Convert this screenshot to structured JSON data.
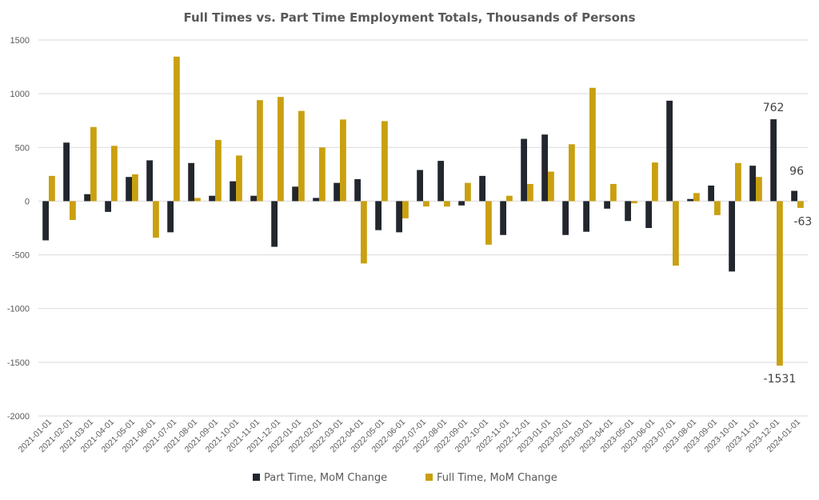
{
  "chart_data": {
    "type": "bar",
    "title": "Full Times vs. Part Time Employment Totals, Thousands of Persons",
    "xlabel": "",
    "ylabel": "",
    "ylim": [
      -2000,
      1500
    ],
    "yticks": [
      1500,
      1000,
      500,
      0,
      -500,
      -1000,
      -1500,
      -2000
    ],
    "grid": true,
    "legend_position": "bottom",
    "categories": [
      "2021-01-01",
      "2021-02-01",
      "2021-03-01",
      "2021-04-01",
      "2021-05-01",
      "2021-06-01",
      "2021-07-01",
      "2021-08-01",
      "2021-09-01",
      "2021-10-01",
      "2021-11-01",
      "2021-12-01",
      "2022-01-01",
      "2022-02-01",
      "2022-03-01",
      "2022-04-01",
      "2022-05-01",
      "2022-06-01",
      "2022-07-01",
      "2022-08-01",
      "2022-09-01",
      "2022-10-01",
      "2022-11-01",
      "2022-12-01",
      "2023-01-01",
      "2023-02-01",
      "2023-03-01",
      "2023-04-01",
      "2023-05-01",
      "2023-06-01",
      "2023-07-01",
      "2023-08-01",
      "2023-09-01",
      "2023-10-01",
      "2023-11-01",
      "2023-12-01",
      "2024-01-01"
    ],
    "series": [
      {
        "name": "Part Time, MoM Change",
        "color": "#22262d",
        "values": [
          -365,
          545,
          65,
          -100,
          225,
          380,
          -290,
          355,
          50,
          185,
          50,
          -425,
          135,
          30,
          170,
          205,
          -270,
          -290,
          290,
          375,
          -40,
          235,
          -315,
          580,
          620,
          -315,
          -285,
          -70,
          -185,
          -250,
          935,
          20,
          145,
          -655,
          330,
          762,
          96
        ]
      },
      {
        "name": "Full Time, MoM Change",
        "color": "#c9a010",
        "values": [
          235,
          -175,
          690,
          515,
          250,
          -340,
          1345,
          30,
          570,
          425,
          940,
          970,
          840,
          500,
          760,
          -580,
          745,
          -160,
          -50,
          -50,
          170,
          -405,
          50,
          160,
          275,
          530,
          1055,
          160,
          -20,
          360,
          -600,
          75,
          -130,
          355,
          225,
          -1531,
          -63
        ]
      }
    ],
    "data_labels": [
      {
        "series": "Part Time, MoM Change",
        "category": "2023-12-01",
        "text": "762"
      },
      {
        "series": "Part Time, MoM Change",
        "category": "2024-01-01",
        "text": "96"
      },
      {
        "series": "Full Time, MoM Change",
        "category": "2023-12-01",
        "text": "-1531"
      },
      {
        "series": "Full Time, MoM Change",
        "category": "2024-01-01",
        "text": "-63"
      }
    ]
  }
}
